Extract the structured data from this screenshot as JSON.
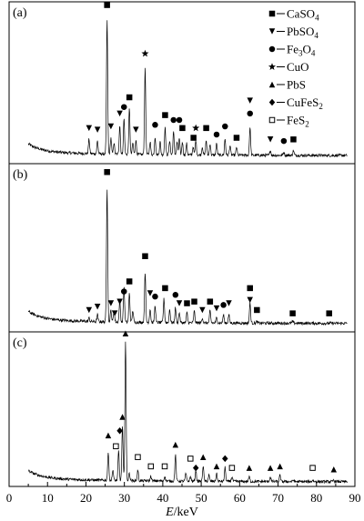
{
  "chart_data": {
    "type": "line",
    "xlabel_var": "E",
    "xlabel_unit": "/keV",
    "xlim": [
      0,
      90
    ],
    "xticks": [
      0,
      10,
      20,
      30,
      40,
      50,
      60,
      70,
      80,
      90
    ],
    "legend": [
      {
        "symbol": "square-filled",
        "base": "CaSO",
        "sub": "4"
      },
      {
        "symbol": "triangle-down",
        "base": "PbSO",
        "sub": "4"
      },
      {
        "symbol": "circle-filled",
        "base": "Fe",
        "sub": "3",
        "base2": "O",
        "sub2": "4"
      },
      {
        "symbol": "star",
        "base": "CuO"
      },
      {
        "symbol": "triangle-up",
        "base": "PbS"
      },
      {
        "symbol": "diamond-filled",
        "base": "CuFeS",
        "sub": "2"
      },
      {
        "symbol": "square-open",
        "base": "FeS",
        "sub": "2"
      }
    ],
    "panels": [
      {
        "label": "(a)",
        "baseline": 0.05,
        "peaks": [
          [
            20.8,
            0.14
          ],
          [
            23.0,
            0.13
          ],
          [
            25.5,
            0.88
          ],
          [
            26.5,
            0.15
          ],
          [
            27.3,
            0.12
          ],
          [
            28.8,
            0.23
          ],
          [
            29.9,
            0.27
          ],
          [
            31.3,
            0.33
          ],
          [
            32.2,
            0.12
          ],
          [
            33.0,
            0.14
          ],
          [
            35.4,
            0.58
          ],
          [
            36.7,
            0.13
          ],
          [
            38.0,
            0.16
          ],
          [
            39.3,
            0.13
          ],
          [
            40.6,
            0.22
          ],
          [
            41.8,
            0.14
          ],
          [
            42.8,
            0.19
          ],
          [
            43.7,
            0.13
          ],
          [
            44.3,
            0.15
          ],
          [
            45.1,
            0.13
          ],
          [
            46.2,
            0.12
          ],
          [
            47.9,
            0.1
          ],
          [
            48.6,
            0.14
          ],
          [
            50.3,
            0.1
          ],
          [
            51.3,
            0.14
          ],
          [
            52.3,
            0.12
          ],
          [
            54.0,
            0.12
          ],
          [
            56.2,
            0.15
          ],
          [
            57.5,
            0.11
          ],
          [
            59.2,
            0.1
          ],
          [
            62.7,
            0.22
          ],
          [
            68.0,
            0.08
          ],
          [
            71.5,
            0.07
          ],
          [
            74.0,
            0.08
          ]
        ],
        "markers": [
          {
            "x": 25.5,
            "y": 0.98,
            "s": "square-filled"
          },
          {
            "x": 35.4,
            "y": 0.68,
            "s": "star"
          },
          {
            "x": 31.3,
            "y": 0.41,
            "s": "square-filled"
          },
          {
            "x": 29.9,
            "y": 0.35,
            "s": "circle-filled"
          },
          {
            "x": 28.8,
            "y": 0.31,
            "s": "triangle-down"
          },
          {
            "x": 26.5,
            "y": 0.23,
            "s": "triangle-down"
          },
          {
            "x": 20.8,
            "y": 0.22,
            "s": "triangle-down"
          },
          {
            "x": 23.0,
            "y": 0.21,
            "s": "triangle-down"
          },
          {
            "x": 33.0,
            "y": 0.21,
            "s": "triangle-down"
          },
          {
            "x": 38.0,
            "y": 0.24,
            "s": "circle-filled"
          },
          {
            "x": 40.6,
            "y": 0.3,
            "s": "square-filled"
          },
          {
            "x": 42.8,
            "y": 0.27,
            "s": "circle-filled"
          },
          {
            "x": 44.3,
            "y": 0.27,
            "s": "circle-filled"
          },
          {
            "x": 45.1,
            "y": 0.22,
            "s": "square-filled"
          },
          {
            "x": 48.6,
            "y": 0.22,
            "s": "star"
          },
          {
            "x": 48.0,
            "y": 0.16,
            "s": "square-filled"
          },
          {
            "x": 51.3,
            "y": 0.22,
            "s": "square-filled"
          },
          {
            "x": 54.0,
            "y": 0.18,
            "s": "circle-filled"
          },
          {
            "x": 56.2,
            "y": 0.23,
            "s": "circle-filled"
          },
          {
            "x": 59.2,
            "y": 0.16,
            "s": "square-filled"
          },
          {
            "x": 62.7,
            "y": 0.31,
            "s": "circle-filled"
          },
          {
            "x": 62.7,
            "y": 0.39,
            "s": "triangle-down"
          },
          {
            "x": 68.0,
            "y": 0.15,
            "s": "triangle-down"
          },
          {
            "x": 71.5,
            "y": 0.14,
            "s": "circle-filled"
          },
          {
            "x": 74.0,
            "y": 0.15,
            "s": "square-filled"
          }
        ]
      },
      {
        "label": "(b)",
        "baseline": 0.05,
        "peaks": [
          [
            20.8,
            0.07
          ],
          [
            23.0,
            0.09
          ],
          [
            25.5,
            0.85
          ],
          [
            26.5,
            0.12
          ],
          [
            27.3,
            0.12
          ],
          [
            28.8,
            0.18
          ],
          [
            29.9,
            0.26
          ],
          [
            31.3,
            0.22
          ],
          [
            32.2,
            0.12
          ],
          [
            35.4,
            0.35
          ],
          [
            36.7,
            0.13
          ],
          [
            38.0,
            0.15
          ],
          [
            40.3,
            0.19
          ],
          [
            41.8,
            0.13
          ],
          [
            43.3,
            0.14
          ],
          [
            44.3,
            0.11
          ],
          [
            46.3,
            0.11
          ],
          [
            48.2,
            0.12
          ],
          [
            50.3,
            0.08
          ],
          [
            52.3,
            0.12
          ],
          [
            54.0,
            0.08
          ],
          [
            55.8,
            0.1
          ],
          [
            57.2,
            0.1
          ],
          [
            62.7,
            0.17
          ],
          [
            64.5,
            0.06
          ],
          [
            73.8,
            0.06
          ],
          [
            76.5,
            0.05
          ],
          [
            83.3,
            0.05
          ]
        ],
        "markers": [
          {
            "x": 25.5,
            "y": 0.95,
            "s": "square-filled"
          },
          {
            "x": 35.4,
            "y": 0.45,
            "s": "square-filled"
          },
          {
            "x": 31.3,
            "y": 0.3,
            "s": "square-filled"
          },
          {
            "x": 29.9,
            "y": 0.24,
            "s": "circle-filled"
          },
          {
            "x": 28.8,
            "y": 0.18,
            "s": "triangle-down"
          },
          {
            "x": 26.5,
            "y": 0.17,
            "s": "triangle-down"
          },
          {
            "x": 27.5,
            "y": 0.11,
            "s": "triangle-down"
          },
          {
            "x": 23.0,
            "y": 0.15,
            "s": "triangle-down"
          },
          {
            "x": 20.8,
            "y": 0.13,
            "s": "triangle-down"
          },
          {
            "x": 36.7,
            "y": 0.23,
            "s": "triangle-down"
          },
          {
            "x": 38.0,
            "y": 0.21,
            "s": "circle-filled"
          },
          {
            "x": 40.6,
            "y": 0.26,
            "s": "square-filled"
          },
          {
            "x": 43.3,
            "y": 0.22,
            "s": "circle-filled"
          },
          {
            "x": 44.3,
            "y": 0.17,
            "s": "triangle-down"
          },
          {
            "x": 46.3,
            "y": 0.17,
            "s": "square-filled"
          },
          {
            "x": 48.2,
            "y": 0.18,
            "s": "square-filled"
          },
          {
            "x": 50.3,
            "y": 0.13,
            "s": "triangle-down"
          },
          {
            "x": 52.3,
            "y": 0.18,
            "s": "square-filled"
          },
          {
            "x": 54.0,
            "y": 0.14,
            "s": "triangle-down"
          },
          {
            "x": 55.8,
            "y": 0.16,
            "s": "circle-filled"
          },
          {
            "x": 57.2,
            "y": 0.17,
            "s": "triangle-down"
          },
          {
            "x": 62.7,
            "y": 0.26,
            "s": "square-filled"
          },
          {
            "x": 62.7,
            "y": 0.19,
            "s": "triangle-down"
          },
          {
            "x": 64.5,
            "y": 0.13,
            "s": "square-filled"
          },
          {
            "x": 73.8,
            "y": 0.11,
            "s": "square-filled"
          },
          {
            "x": 83.3,
            "y": 0.11,
            "s": "square-filled"
          }
        ]
      },
      {
        "label": "(c)",
        "baseline": 0.03,
        "peaks": [
          [
            25.8,
            0.21
          ],
          [
            27.0,
            0.1
          ],
          [
            28.5,
            0.22
          ],
          [
            29.5,
            0.38
          ],
          [
            30.3,
            0.93
          ],
          [
            31.3,
            0.08
          ],
          [
            33.5,
            0.1
          ],
          [
            36.9,
            0.06
          ],
          [
            40.5,
            0.06
          ],
          [
            43.3,
            0.2
          ],
          [
            46.0,
            0.08
          ],
          [
            47.2,
            0.06
          ],
          [
            48.6,
            0.1
          ],
          [
            50.5,
            0.13
          ],
          [
            52.0,
            0.07
          ],
          [
            54.0,
            0.08
          ],
          [
            56.2,
            0.12
          ],
          [
            58.0,
            0.06
          ],
          [
            62.5,
            0.06
          ],
          [
            68.0,
            0.06
          ],
          [
            70.5,
            0.07
          ],
          [
            74.0,
            0.04
          ],
          [
            79.0,
            0.04
          ],
          [
            84.5,
            0.04
          ]
        ],
        "markers": [
          {
            "x": 30.3,
            "y": 0.99,
            "s": "triangle-up"
          },
          {
            "x": 29.5,
            "y": 0.45,
            "s": "triangle-up"
          },
          {
            "x": 28.8,
            "y": 0.36,
            "s": "diamond-filled"
          },
          {
            "x": 25.8,
            "y": 0.33,
            "s": "triangle-up"
          },
          {
            "x": 27.8,
            "y": 0.26,
            "s": "square-open"
          },
          {
            "x": 33.5,
            "y": 0.19,
            "s": "square-open"
          },
          {
            "x": 36.9,
            "y": 0.13,
            "s": "square-open"
          },
          {
            "x": 40.5,
            "y": 0.13,
            "s": "square-open"
          },
          {
            "x": 43.3,
            "y": 0.27,
            "s": "triangle-up"
          },
          {
            "x": 47.2,
            "y": 0.18,
            "s": "square-open"
          },
          {
            "x": 48.6,
            "y": 0.12,
            "s": "diamond-filled"
          },
          {
            "x": 50.5,
            "y": 0.19,
            "s": "triangle-up"
          },
          {
            "x": 54.0,
            "y": 0.13,
            "s": "triangle-up"
          },
          {
            "x": 56.2,
            "y": 0.18,
            "s": "diamond-filled"
          },
          {
            "x": 58.0,
            "y": 0.12,
            "s": "square-open"
          },
          {
            "x": 62.5,
            "y": 0.12,
            "s": "triangle-up"
          },
          {
            "x": 68.0,
            "y": 0.12,
            "s": "triangle-up"
          },
          {
            "x": 70.5,
            "y": 0.13,
            "s": "triangle-up"
          },
          {
            "x": 79.0,
            "y": 0.12,
            "s": "square-open"
          },
          {
            "x": 84.5,
            "y": 0.11,
            "s": "triangle-up"
          }
        ]
      }
    ]
  }
}
